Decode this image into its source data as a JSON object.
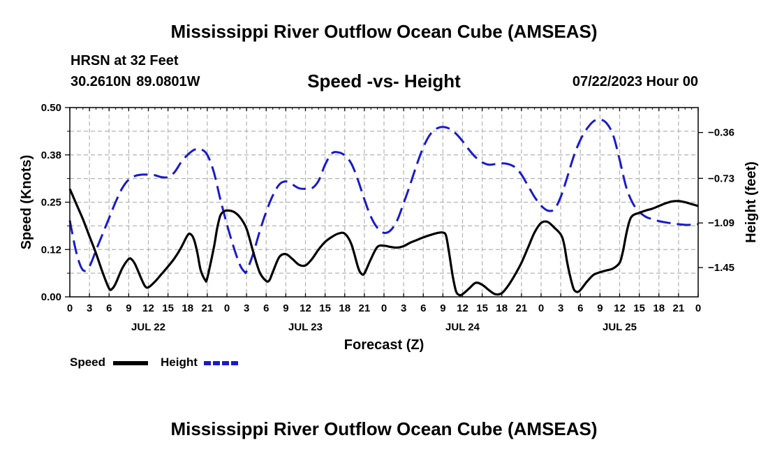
{
  "header": {
    "title": "Mississippi River Outflow Ocean Cube (AMSEAS)",
    "station": "HRSN at 32 Feet",
    "coordinates": "30.2610N  89.0801W",
    "subtitle": "Speed -vs- Height",
    "datetime": "07/22/2023 Hour 00"
  },
  "footer": {
    "title": "Mississippi River Outflow Ocean Cube (AMSEAS)"
  },
  "chart_data": {
    "type": "line",
    "title": "Speed -vs- Height",
    "xlabel": "Forecast (Z)",
    "ylabel": "Speed (Knots)",
    "y2label": "Height (feet)",
    "x_range_hours": [
      0,
      96
    ],
    "x_tick_hours": [
      0,
      3,
      6,
      9,
      12,
      15,
      18,
      21,
      24,
      27,
      30,
      33,
      36,
      39,
      42,
      45,
      48,
      51,
      54,
      57,
      60,
      63,
      66,
      69,
      72,
      75,
      78,
      81,
      84,
      87,
      90,
      93,
      96
    ],
    "x_tick_labels": [
      "0",
      "3",
      "6",
      "9",
      "12",
      "15",
      "18",
      "21",
      "0",
      "3",
      "6",
      "9",
      "12",
      "15",
      "18",
      "21",
      "0",
      "3",
      "6",
      "9",
      "12",
      "15",
      "18",
      "21",
      "0",
      "3",
      "6",
      "9",
      "12",
      "15",
      "18",
      "21",
      "0"
    ],
    "day_labels": [
      {
        "label": "JUL 22",
        "hour": 12
      },
      {
        "label": "JUL 23",
        "hour": 36
      },
      {
        "label": "JUL 24",
        "hour": 60
      },
      {
        "label": "JUL 25",
        "hour": 84
      }
    ],
    "y_left": {
      "range": [
        0,
        0.5
      ],
      "ticks": [
        0.0,
        0.125,
        0.25,
        0.375,
        0.5
      ],
      "tick_labels": [
        "0.00",
        "0.12",
        "0.25",
        "0.38",
        "0.50"
      ]
    },
    "y_right": {
      "range": [
        -1.686,
        -0.159
      ],
      "ticks": [
        -0.36,
        -0.73,
        -1.09,
        -1.45
      ],
      "tick_labels": [
        "−0.36",
        "−0.73",
        "−1.09",
        "−1.45"
      ]
    },
    "grid": true,
    "legend": [
      {
        "label": "Speed",
        "color": "#000000",
        "style": "solid"
      },
      {
        "label": "Height",
        "color": "#1a1acc",
        "style": "dashed"
      }
    ],
    "series": [
      {
        "name": "Speed",
        "axis": "left",
        "color": "#000000",
        "points": [
          [
            0,
            0.285
          ],
          [
            1,
            0.245
          ],
          [
            2,
            0.205
          ],
          [
            3,
            0.16
          ],
          [
            4,
            0.115
          ],
          [
            5,
            0.065
          ],
          [
            6,
            0.022
          ],
          [
            6.5,
            0.022
          ],
          [
            7,
            0.035
          ],
          [
            8,
            0.075
          ],
          [
            9,
            0.1
          ],
          [
            9.5,
            0.098
          ],
          [
            10,
            0.085
          ],
          [
            11,
            0.045
          ],
          [
            11.5,
            0.028
          ],
          [
            12,
            0.025
          ],
          [
            13,
            0.04
          ],
          [
            14,
            0.06
          ],
          [
            15,
            0.08
          ],
          [
            16,
            0.102
          ],
          [
            17,
            0.13
          ],
          [
            18,
            0.163
          ],
          [
            18.5,
            0.165
          ],
          [
            19,
            0.15
          ],
          [
            19.5,
            0.115
          ],
          [
            20,
            0.07
          ],
          [
            20.7,
            0.044
          ],
          [
            21,
            0.05
          ],
          [
            22,
            0.13
          ],
          [
            22.5,
            0.18
          ],
          [
            23,
            0.215
          ],
          [
            23.5,
            0.225
          ],
          [
            24,
            0.228
          ],
          [
            25,
            0.225
          ],
          [
            26,
            0.21
          ],
          [
            27,
            0.18
          ],
          [
            28,
            0.12
          ],
          [
            29,
            0.065
          ],
          [
            30,
            0.042
          ],
          [
            30.5,
            0.044
          ],
          [
            31,
            0.065
          ],
          [
            32,
            0.105
          ],
          [
            33,
            0.113
          ],
          [
            34,
            0.1
          ],
          [
            35,
            0.085
          ],
          [
            36,
            0.083
          ],
          [
            37,
            0.1
          ],
          [
            38,
            0.125
          ],
          [
            39,
            0.145
          ],
          [
            40,
            0.158
          ],
          [
            41,
            0.167
          ],
          [
            42,
            0.167
          ],
          [
            43,
            0.14
          ],
          [
            44,
            0.08
          ],
          [
            44.5,
            0.062
          ],
          [
            45,
            0.062
          ],
          [
            46,
            0.1
          ],
          [
            47,
            0.132
          ],
          [
            48,
            0.135
          ],
          [
            49,
            0.132
          ],
          [
            50,
            0.13
          ],
          [
            51,
            0.134
          ],
          [
            52,
            0.143
          ],
          [
            53,
            0.15
          ],
          [
            54,
            0.157
          ],
          [
            55,
            0.163
          ],
          [
            56,
            0.168
          ],
          [
            57,
            0.17
          ],
          [
            57.5,
            0.16
          ],
          [
            58,
            0.11
          ],
          [
            58.5,
            0.055
          ],
          [
            59,
            0.015
          ],
          [
            59.5,
            0.005
          ],
          [
            60,
            0.007
          ],
          [
            61,
            0.022
          ],
          [
            62,
            0.037
          ],
          [
            63,
            0.032
          ],
          [
            64,
            0.018
          ],
          [
            65,
            0.007
          ],
          [
            66,
            0.01
          ],
          [
            67,
            0.03
          ],
          [
            68,
            0.058
          ],
          [
            69,
            0.09
          ],
          [
            70,
            0.13
          ],
          [
            71,
            0.17
          ],
          [
            72,
            0.195
          ],
          [
            73,
            0.198
          ],
          [
            74,
            0.183
          ],
          [
            75,
            0.165
          ],
          [
            75.5,
            0.14
          ],
          [
            76,
            0.09
          ],
          [
            76.5,
            0.05
          ],
          [
            77,
            0.02
          ],
          [
            77.5,
            0.013
          ],
          [
            78,
            0.018
          ],
          [
            79,
            0.04
          ],
          [
            80,
            0.058
          ],
          [
            81,
            0.065
          ],
          [
            82,
            0.07
          ],
          [
            83,
            0.075
          ],
          [
            84,
            0.09
          ],
          [
            84.5,
            0.12
          ],
          [
            85,
            0.165
          ],
          [
            85.5,
            0.2
          ],
          [
            86,
            0.215
          ],
          [
            87,
            0.222
          ],
          [
            88,
            0.228
          ],
          [
            89,
            0.233
          ],
          [
            90,
            0.24
          ],
          [
            91,
            0.247
          ],
          [
            92,
            0.252
          ],
          [
            93,
            0.253
          ],
          [
            94,
            0.25
          ],
          [
            95,
            0.245
          ],
          [
            96,
            0.24
          ]
        ]
      },
      {
        "name": "Height",
        "axis": "right",
        "color": "#1a1acc",
        "points": [
          [
            0,
            -1.07
          ],
          [
            1,
            -1.33
          ],
          [
            2,
            -1.47
          ],
          [
            3,
            -1.44
          ],
          [
            4,
            -1.31
          ],
          [
            5,
            -1.18
          ],
          [
            6,
            -1.05
          ],
          [
            7,
            -0.92
          ],
          [
            8,
            -0.81
          ],
          [
            9,
            -0.74
          ],
          [
            10,
            -0.71
          ],
          [
            11,
            -0.7
          ],
          [
            12,
            -0.7
          ],
          [
            13,
            -0.705
          ],
          [
            14,
            -0.72
          ],
          [
            15,
            -0.72
          ],
          [
            16,
            -0.68
          ],
          [
            17,
            -0.6
          ],
          [
            18,
            -0.54
          ],
          [
            19,
            -0.5
          ],
          [
            20,
            -0.495
          ],
          [
            21,
            -0.54
          ],
          [
            22,
            -0.68
          ],
          [
            23,
            -0.9
          ],
          [
            24,
            -1.1
          ],
          [
            25,
            -1.28
          ],
          [
            26,
            -1.43
          ],
          [
            26.7,
            -1.485
          ],
          [
            27,
            -1.48
          ],
          [
            28,
            -1.34
          ],
          [
            29,
            -1.16
          ],
          [
            30,
            -1.0
          ],
          [
            31,
            -0.87
          ],
          [
            32,
            -0.78
          ],
          [
            33,
            -0.755
          ],
          [
            34,
            -0.78
          ],
          [
            35,
            -0.81
          ],
          [
            36,
            -0.815
          ],
          [
            37,
            -0.81
          ],
          [
            38,
            -0.75
          ],
          [
            39,
            -0.62
          ],
          [
            40,
            -0.53
          ],
          [
            41,
            -0.52
          ],
          [
            42,
            -0.545
          ],
          [
            43,
            -0.61
          ],
          [
            44,
            -0.74
          ],
          [
            45,
            -0.9
          ],
          [
            46,
            -1.04
          ],
          [
            47,
            -1.13
          ],
          [
            48,
            -1.17
          ],
          [
            49,
            -1.15
          ],
          [
            50,
            -1.07
          ],
          [
            51,
            -0.93
          ],
          [
            52,
            -0.78
          ],
          [
            53,
            -0.62
          ],
          [
            54,
            -0.48
          ],
          [
            55,
            -0.38
          ],
          [
            56,
            -0.33
          ],
          [
            57,
            -0.315
          ],
          [
            58,
            -0.33
          ],
          [
            59,
            -0.37
          ],
          [
            60,
            -0.43
          ],
          [
            61,
            -0.5
          ],
          [
            62,
            -0.56
          ],
          [
            63,
            -0.6
          ],
          [
            64,
            -0.62
          ],
          [
            65,
            -0.615
          ],
          [
            66,
            -0.608
          ],
          [
            67,
            -0.615
          ],
          [
            68,
            -0.64
          ],
          [
            69,
            -0.7
          ],
          [
            70,
            -0.79
          ],
          [
            71,
            -0.88
          ],
          [
            72,
            -0.95
          ],
          [
            73,
            -0.99
          ],
          [
            74,
            -0.98
          ],
          [
            75,
            -0.88
          ],
          [
            76,
            -0.72
          ],
          [
            77,
            -0.55
          ],
          [
            78,
            -0.42
          ],
          [
            79,
            -0.33
          ],
          [
            80,
            -0.27
          ],
          [
            81,
            -0.255
          ],
          [
            82,
            -0.285
          ],
          [
            83,
            -0.38
          ],
          [
            84,
            -0.58
          ],
          [
            85,
            -0.8
          ],
          [
            86,
            -0.93
          ],
          [
            87,
            -1.0
          ],
          [
            88,
            -1.04
          ],
          [
            89,
            -1.06
          ],
          [
            90,
            -1.075
          ],
          [
            91,
            -1.085
          ],
          [
            92,
            -1.093
          ],
          [
            93,
            -1.1
          ],
          [
            94,
            -1.105
          ],
          [
            95,
            -1.105
          ],
          [
            96,
            -1.1
          ]
        ]
      }
    ]
  }
}
